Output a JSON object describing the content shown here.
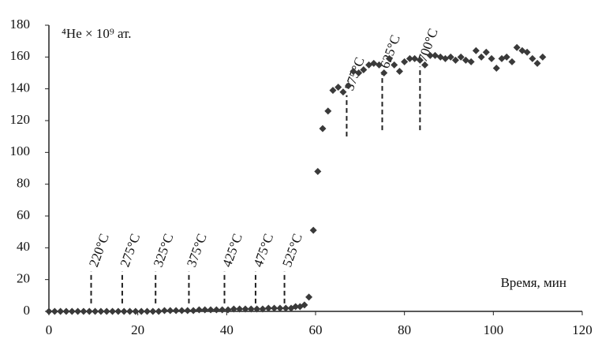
{
  "chart_data": {
    "type": "scatter",
    "y_label": "⁴He × 10⁹ ат.",
    "x_label": "Время, мин",
    "color": "#3a3a3a",
    "xlim": [
      0,
      120
    ],
    "xticks": [
      0,
      20,
      40,
      60,
      80,
      100,
      120
    ],
    "ylim": [
      0,
      180
    ],
    "yticks": [
      0,
      20,
      40,
      60,
      80,
      100,
      120,
      140,
      160,
      180
    ],
    "series": [
      {
        "name": null,
        "color": "#3a3a3a",
        "x": [
          0,
          1.3,
          2.6,
          3.9,
          5.2,
          6.5,
          7.8,
          9.1,
          10.4,
          11.7,
          13,
          14.3,
          15.6,
          16.9,
          18.2,
          19.5,
          20.8,
          22.1,
          23.4,
          24.7,
          26,
          27.3,
          28.6,
          29.9,
          31.2,
          32.5,
          33.8,
          35.1,
          36.4,
          37.7,
          39,
          40.3,
          41.6,
          42.9,
          44.2,
          45.5,
          46.8,
          48.1,
          49.4,
          50.7,
          52,
          53.3,
          54.5,
          55.5,
          56.5,
          57.5,
          58.5,
          59.5,
          60.5,
          61.6,
          62.8,
          63.9,
          65.1,
          66.2,
          67.4,
          68.5,
          69.7,
          70.8,
          72,
          73.1,
          74.3,
          75.4,
          76.6,
          77.7,
          78.9,
          80,
          81.2,
          82.3,
          83.5,
          84.6,
          85.8,
          86.9,
          88.1,
          89.2,
          90.4,
          91.5,
          92.7,
          93.8,
          95,
          96.1,
          97.3,
          98.4,
          99.6,
          100.7,
          101.9,
          103,
          104.2,
          105.3,
          106.5,
          107.6,
          108.8,
          109.9,
          111.1
        ],
        "values": [
          0,
          0,
          0,
          0,
          0,
          0,
          0,
          0,
          0,
          0,
          0,
          0,
          0,
          0,
          0,
          0,
          0,
          0,
          0,
          0,
          0.5,
          0.5,
          0.5,
          0.5,
          0.5,
          0.5,
          1,
          1,
          1,
          1,
          1,
          1,
          1.5,
          1.5,
          1.5,
          1.5,
          1.5,
          1.5,
          2,
          2,
          2,
          2,
          2,
          3,
          3,
          4,
          9,
          51,
          88,
          115,
          126,
          139,
          141,
          138,
          142,
          151,
          150,
          152,
          155,
          156,
          155,
          150,
          159,
          155,
          151,
          157,
          159,
          159,
          158,
          155,
          161,
          161,
          160,
          159,
          160,
          158,
          160,
          158,
          157,
          164,
          160,
          163,
          159,
          153,
          159,
          160,
          157,
          166,
          164,
          163,
          159,
          156,
          160
        ]
      }
    ],
    "annotations": [
      {
        "text": "220°C",
        "x": 9.5,
        "y": [
          5,
          25
        ]
      },
      {
        "text": "275°C",
        "x": 16.5,
        "y": [
          5,
          25
        ]
      },
      {
        "text": "325°C",
        "x": 24,
        "y": [
          5,
          25
        ]
      },
      {
        "text": "375°C",
        "x": 31.5,
        "y": [
          5,
          25
        ]
      },
      {
        "text": "425°C",
        "x": 39.5,
        "y": [
          5,
          25
        ]
      },
      {
        "text": "475°C",
        "x": 46.5,
        "y": [
          5,
          25
        ]
      },
      {
        "text": "525°C",
        "x": 53,
        "y": [
          5,
          25
        ]
      },
      {
        "text": "575°C",
        "x": 67,
        "y": [
          110,
          136
        ]
      },
      {
        "text": "625°C",
        "x": 75,
        "y": [
          114,
          150
        ]
      },
      {
        "text": "700°C",
        "x": 83.5,
        "y": [
          114,
          154
        ]
      }
    ]
  }
}
